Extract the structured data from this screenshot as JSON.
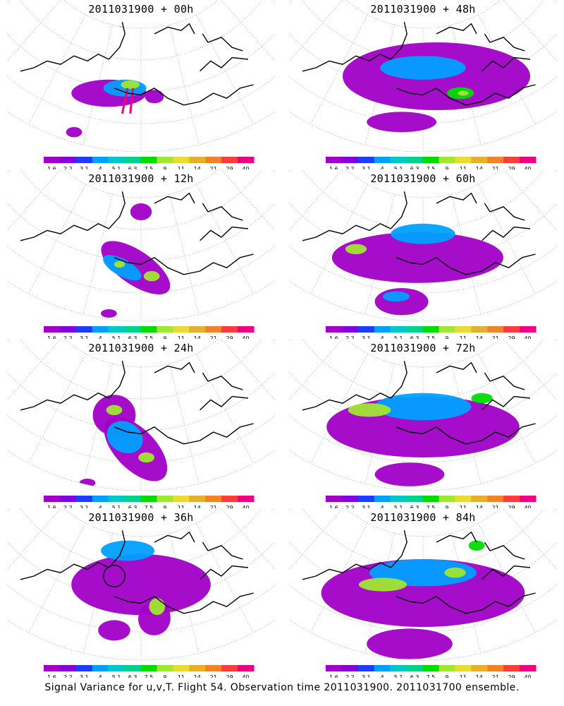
{
  "footer_text": "Signal Variance for u,v,T. Flight 54. Observation time 2011031900. 2011031700 ensemble.",
  "chart_data": {
    "type": "heatmap",
    "colorbar": {
      "ticks": [
        "1.6",
        "2.2",
        "3.1",
        "4",
        "5.1",
        "6.3",
        "7.5",
        "9",
        "11",
        "14",
        "21",
        "29",
        "40"
      ],
      "colors": [
        "#a000c8",
        "#8200dc",
        "#1e3cff",
        "#00a0ff",
        "#00c8c8",
        "#00d28c",
        "#00dc00",
        "#a0e632",
        "#e6dc32",
        "#e6af2d",
        "#f08228",
        "#fa3c3c",
        "#f00082"
      ]
    },
    "panels": [
      {
        "title": "2011031900 + 00h",
        "blobs": [
          {
            "x": 0.38,
            "y": 0.55,
            "rx": 0.14,
            "ry": 0.08,
            "rot": 0,
            "level": 0
          },
          {
            "x": 0.44,
            "y": 0.52,
            "rx": 0.08,
            "ry": 0.05,
            "rot": 0,
            "level": 3
          },
          {
            "x": 0.46,
            "y": 0.5,
            "rx": 0.035,
            "ry": 0.025,
            "rot": 0,
            "level": 7
          },
          {
            "x": 0.55,
            "y": 0.57,
            "rx": 0.035,
            "ry": 0.04,
            "rot": 0,
            "level": 0
          },
          {
            "x": 0.25,
            "y": 0.78,
            "rx": 0.03,
            "ry": 0.03,
            "rot": 0,
            "level": 0
          },
          {
            "x": 0.43,
            "y": 0.14,
            "rx": 0.02,
            "ry": 0.02,
            "rot": 0,
            "level": 0
          }
        ],
        "lines": [
          {
            "pts": [
              [
                0.45,
                0.52
              ],
              [
                0.43,
                0.67
              ]
            ],
            "level": 12
          },
          {
            "pts": [
              [
                0.47,
                0.52
              ],
              [
                0.46,
                0.67
              ]
            ],
            "level": 12
          }
        ],
        "circles": []
      },
      {
        "title": "2011031900 + 48h",
        "blobs": [
          {
            "x": 0.55,
            "y": 0.45,
            "rx": 0.35,
            "ry": 0.2,
            "rot": 0,
            "level": 0
          },
          {
            "x": 0.42,
            "y": 0.72,
            "rx": 0.13,
            "ry": 0.06,
            "rot": 0,
            "level": 0
          },
          {
            "x": 0.5,
            "y": 0.4,
            "rx": 0.16,
            "ry": 0.07,
            "rot": 0,
            "level": 3
          },
          {
            "x": 0.64,
            "y": 0.55,
            "rx": 0.05,
            "ry": 0.035,
            "rot": 0,
            "level": 6
          },
          {
            "x": 0.65,
            "y": 0.55,
            "rx": 0.02,
            "ry": 0.015,
            "rot": 0,
            "level": 7
          }
        ],
        "lines": [],
        "circles": []
      },
      {
        "title": "2011031900 + 12h",
        "blobs": [
          {
            "x": 0.48,
            "y": 0.58,
            "rx": 0.15,
            "ry": 0.1,
            "rot": 0.6,
            "level": 0
          },
          {
            "x": 0.43,
            "y": 0.58,
            "rx": 0.08,
            "ry": 0.05,
            "rot": 0.5,
            "level": 3
          },
          {
            "x": 0.42,
            "y": 0.56,
            "rx": 0.02,
            "ry": 0.02,
            "rot": 0,
            "level": 7
          },
          {
            "x": 0.54,
            "y": 0.63,
            "rx": 0.03,
            "ry": 0.03,
            "rot": 0,
            "level": 7
          },
          {
            "x": 0.5,
            "y": 0.25,
            "rx": 0.04,
            "ry": 0.05,
            "rot": 0,
            "level": 0
          },
          {
            "x": 0.38,
            "y": 0.85,
            "rx": 0.03,
            "ry": 0.025,
            "rot": 0,
            "level": 0
          }
        ],
        "lines": [],
        "circles": []
      },
      {
        "title": "2011031900 + 60h",
        "blobs": [
          {
            "x": 0.48,
            "y": 0.52,
            "rx": 0.32,
            "ry": 0.15,
            "rot": 0,
            "level": 0
          },
          {
            "x": 0.42,
            "y": 0.78,
            "rx": 0.1,
            "ry": 0.08,
            "rot": 0,
            "level": 0
          },
          {
            "x": 0.5,
            "y": 0.38,
            "rx": 0.12,
            "ry": 0.06,
            "rot": 0,
            "level": 3
          },
          {
            "x": 0.25,
            "y": 0.47,
            "rx": 0.04,
            "ry": 0.03,
            "rot": 0,
            "level": 7
          },
          {
            "x": 0.4,
            "y": 0.75,
            "rx": 0.05,
            "ry": 0.03,
            "rot": 0,
            "level": 3
          }
        ],
        "lines": [],
        "circles": []
      },
      {
        "title": "2011031900 + 24h",
        "blobs": [
          {
            "x": 0.48,
            "y": 0.65,
            "rx": 0.15,
            "ry": 0.12,
            "rot": 0.8,
            "level": 0
          },
          {
            "x": 0.4,
            "y": 0.45,
            "rx": 0.08,
            "ry": 0.12,
            "rot": 0,
            "level": 0
          },
          {
            "x": 0.44,
            "y": 0.58,
            "rx": 0.07,
            "ry": 0.09,
            "rot": 0.5,
            "level": 3
          },
          {
            "x": 0.4,
            "y": 0.42,
            "rx": 0.03,
            "ry": 0.03,
            "rot": 0,
            "level": 7
          },
          {
            "x": 0.52,
            "y": 0.7,
            "rx": 0.03,
            "ry": 0.03,
            "rot": 0,
            "level": 7
          },
          {
            "x": 0.3,
            "y": 0.85,
            "rx": 0.03,
            "ry": 0.025,
            "rot": 0,
            "level": 0
          }
        ],
        "lines": [],
        "circles": []
      },
      {
        "title": "2011031900 + 72h",
        "blobs": [
          {
            "x": 0.5,
            "y": 0.52,
            "rx": 0.36,
            "ry": 0.18,
            "rot": 0,
            "level": 0
          },
          {
            "x": 0.45,
            "y": 0.8,
            "rx": 0.13,
            "ry": 0.07,
            "rot": 0,
            "level": 0
          },
          {
            "x": 0.5,
            "y": 0.4,
            "rx": 0.18,
            "ry": 0.08,
            "rot": 0,
            "level": 3
          },
          {
            "x": 0.3,
            "y": 0.42,
            "rx": 0.08,
            "ry": 0.04,
            "rot": 0,
            "level": 7
          },
          {
            "x": 0.72,
            "y": 0.35,
            "rx": 0.04,
            "ry": 0.03,
            "rot": 0,
            "level": 6
          }
        ],
        "lines": [],
        "circles": []
      },
      {
        "title": "2011031900 + 36h",
        "blobs": [
          {
            "x": 0.5,
            "y": 0.45,
            "rx": 0.26,
            "ry": 0.18,
            "rot": 0,
            "level": 0
          },
          {
            "x": 0.55,
            "y": 0.65,
            "rx": 0.06,
            "ry": 0.1,
            "rot": 0.3,
            "level": 0
          },
          {
            "x": 0.4,
            "y": 0.72,
            "rx": 0.06,
            "ry": 0.06,
            "rot": 0,
            "level": 0
          },
          {
            "x": 0.45,
            "y": 0.25,
            "rx": 0.1,
            "ry": 0.06,
            "rot": 0,
            "level": 3
          },
          {
            "x": 0.56,
            "y": 0.58,
            "rx": 0.03,
            "ry": 0.05,
            "rot": 0,
            "level": 7
          }
        ],
        "lines": [],
        "circles": [
          {
            "x": 0.4,
            "y": 0.4,
            "r": 0.04
          }
        ]
      },
      {
        "title": "2011031900 + 84h",
        "blobs": [
          {
            "x": 0.5,
            "y": 0.5,
            "rx": 0.38,
            "ry": 0.2,
            "rot": 0,
            "level": 0
          },
          {
            "x": 0.45,
            "y": 0.8,
            "rx": 0.16,
            "ry": 0.09,
            "rot": 0,
            "level": 0
          },
          {
            "x": 0.5,
            "y": 0.38,
            "rx": 0.2,
            "ry": 0.08,
            "rot": 0,
            "level": 3
          },
          {
            "x": 0.35,
            "y": 0.45,
            "rx": 0.09,
            "ry": 0.04,
            "rot": 0,
            "level": 7
          },
          {
            "x": 0.62,
            "y": 0.38,
            "rx": 0.04,
            "ry": 0.03,
            "rot": 0,
            "level": 7
          },
          {
            "x": 0.7,
            "y": 0.22,
            "rx": 0.03,
            "ry": 0.03,
            "rot": 0,
            "level": 6
          }
        ],
        "lines": [],
        "circles": []
      }
    ]
  }
}
